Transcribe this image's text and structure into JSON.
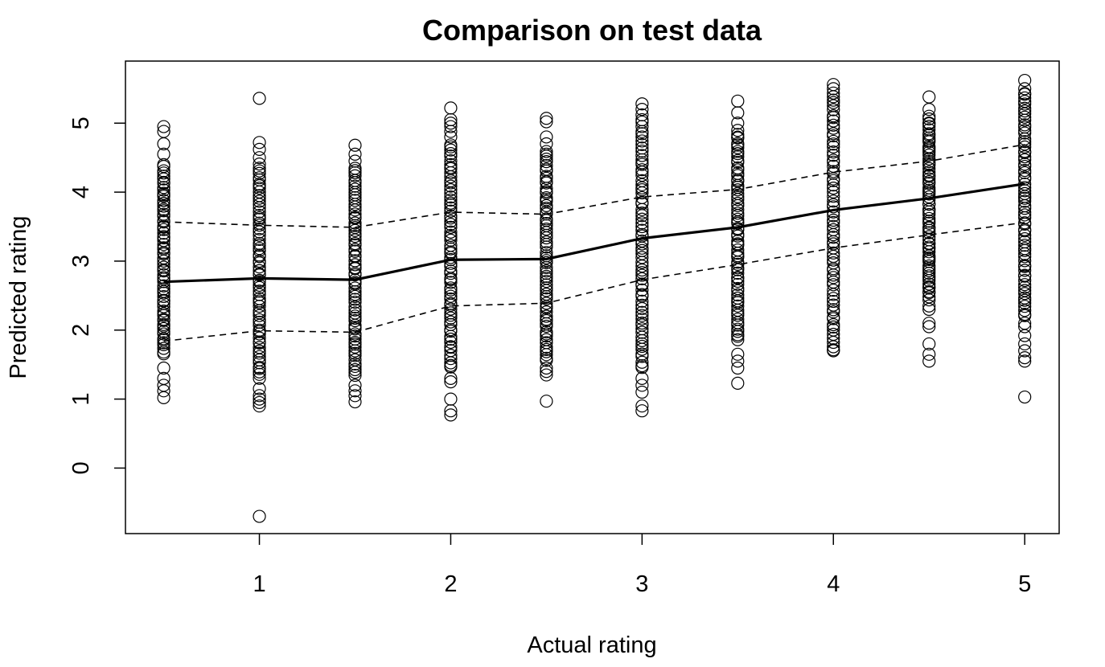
{
  "chart_data": {
    "type": "scatter",
    "title": "Comparison on test data",
    "xlabel": "Actual rating",
    "ylabel": "Predicted rating",
    "xlim": [
      0.3,
      5.18
    ],
    "ylim": [
      -0.95,
      5.9
    ],
    "x_ticks": [
      1,
      2,
      3,
      4,
      5
    ],
    "y_ticks": [
      0,
      1,
      2,
      3,
      4,
      5
    ],
    "grid": false,
    "legend": "none",
    "columns": [
      {
        "x": 0.5,
        "dense_range": [
          1.65,
          4.4
        ],
        "sparse_points": [
          1.02,
          1.12,
          1.2,
          1.3,
          1.45,
          4.55,
          4.7,
          4.88,
          4.95
        ]
      },
      {
        "x": 1.0,
        "dense_range": [
          1.3,
          4.4
        ],
        "sparse_points": [
          -0.7,
          0.9,
          0.95,
          1.0,
          1.05,
          1.15,
          4.5,
          4.62,
          4.72,
          5.36
        ]
      },
      {
        "x": 1.5,
        "dense_range": [
          1.35,
          4.35
        ],
        "sparse_points": [
          0.96,
          1.05,
          1.12,
          1.2,
          4.45,
          4.55,
          4.68
        ]
      },
      {
        "x": 2.0,
        "dense_range": [
          1.45,
          4.7
        ],
        "sparse_points": [
          0.77,
          0.83,
          1.0,
          1.25,
          1.3,
          4.8,
          4.88,
          4.95,
          5.0,
          5.05,
          5.22
        ]
      },
      {
        "x": 2.5,
        "dense_range": [
          1.55,
          4.6
        ],
        "sparse_points": [
          0.97,
          1.35,
          1.4,
          1.45,
          4.7,
          4.8,
          5.02,
          5.07
        ]
      },
      {
        "x": 3.0,
        "dense_range": [
          1.45,
          5.0
        ],
        "sparse_points": [
          0.83,
          0.9,
          1.1,
          1.2,
          1.3,
          5.05,
          5.12,
          5.2,
          5.28
        ]
      },
      {
        "x": 3.5,
        "dense_range": [
          1.85,
          4.9
        ],
        "sparse_points": [
          1.23,
          1.45,
          1.55,
          1.65,
          5.0,
          5.15,
          5.32
        ]
      },
      {
        "x": 4.0,
        "dense_range": [
          1.72,
          5.45
        ],
        "sparse_points": [
          1.7,
          5.5,
          5.56
        ]
      },
      {
        "x": 4.5,
        "dense_range": [
          2.45,
          5.05
        ],
        "sparse_points": [
          1.55,
          1.65,
          1.8,
          2.05,
          2.1,
          2.3,
          2.35,
          5.1,
          5.2,
          5.38
        ]
      },
      {
        "x": 5.0,
        "dense_range": [
          2.2,
          5.45
        ],
        "sparse_points": [
          1.03,
          1.55,
          1.6,
          1.7,
          1.8,
          1.92,
          2.05,
          2.1,
          5.5,
          5.62
        ]
      }
    ],
    "series": [
      {
        "style": "solid",
        "x": [
          0.5,
          1.0,
          1.5,
          2.0,
          2.5,
          3.0,
          3.5,
          4.0,
          4.5,
          5.0
        ],
        "y": [
          2.7,
          2.75,
          2.73,
          3.02,
          3.03,
          3.33,
          3.49,
          3.74,
          3.91,
          4.12
        ]
      },
      {
        "style": "dashed",
        "x": [
          0.5,
          1.0,
          1.5,
          2.0,
          2.5,
          3.0,
          3.5,
          4.0,
          4.5,
          5.0
        ],
        "y": [
          3.57,
          3.52,
          3.49,
          3.71,
          3.68,
          3.93,
          4.04,
          4.29,
          4.45,
          4.69
        ]
      },
      {
        "style": "dashed",
        "x": [
          0.5,
          1.0,
          1.5,
          2.0,
          2.5,
          3.0,
          3.5,
          4.0,
          4.5,
          5.0
        ],
        "y": [
          1.84,
          1.99,
          1.97,
          2.35,
          2.39,
          2.73,
          2.95,
          3.19,
          3.38,
          3.56
        ]
      }
    ]
  }
}
